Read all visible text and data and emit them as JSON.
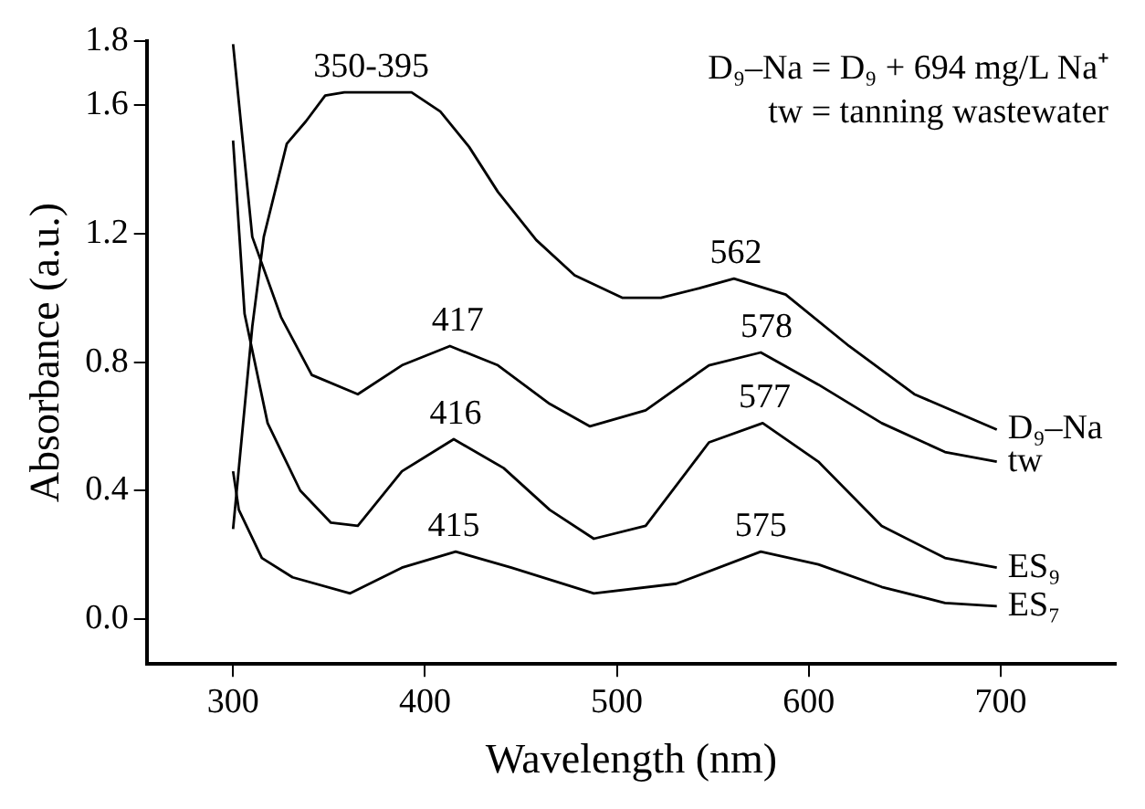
{
  "chart_data": {
    "type": "line",
    "xlabel": "Wavelength (nm)",
    "ylabel": "Absorbance (a.u.)",
    "xlim": [
      255,
      760
    ],
    "xticks": [
      300,
      400,
      500,
      600,
      700
    ],
    "ylim": [
      -0.14,
      1.8
    ],
    "yticks": [
      {
        "value": 0,
        "label": "0.0"
      },
      {
        "value": 0.4,
        "label": "0.4"
      },
      {
        "value": 0.8,
        "label": "0.8"
      },
      {
        "value": 1.2,
        "label": "1.2"
      },
      {
        "value": 1.6,
        "label": "1.6"
      },
      {
        "value": 1.8,
        "label": "1.8"
      }
    ],
    "grid": false,
    "legend": false,
    "marker": "none",
    "line_style": "solid",
    "series": [
      {
        "name": "D₉–Na",
        "color": "#000000",
        "x": [
          300,
          310,
          316,
          328,
          338,
          348,
          358,
          378,
          393,
          408,
          423,
          438,
          458,
          478,
          503,
          523,
          543,
          561,
          588,
          621,
          655,
          698
        ],
        "values": [
          0.28,
          0.91,
          1.19,
          1.48,
          1.55,
          1.63,
          1.64,
          1.64,
          1.64,
          1.58,
          1.47,
          1.33,
          1.18,
          1.07,
          1.0,
          1.0,
          1.03,
          1.06,
          1.01,
          0.85,
          0.7,
          0.59
        ]
      },
      {
        "name": "tw",
        "color": "#000000",
        "x": [
          300,
          310,
          325,
          341,
          365,
          388,
          413,
          438,
          465,
          486,
          515,
          548,
          575,
          605,
          638,
          671,
          698
        ],
        "values": [
          1.79,
          1.19,
          0.94,
          0.76,
          0.7,
          0.79,
          0.85,
          0.79,
          0.67,
          0.6,
          0.65,
          0.79,
          0.83,
          0.73,
          0.61,
          0.52,
          0.49
        ]
      },
      {
        "name": "ES₉",
        "color": "#000000",
        "x": [
          300,
          306,
          318,
          335,
          351,
          365,
          388,
          415,
          441,
          465,
          488,
          515,
          548,
          576,
          605,
          638,
          671,
          698
        ],
        "values": [
          1.49,
          0.95,
          0.61,
          0.4,
          0.3,
          0.29,
          0.46,
          0.56,
          0.47,
          0.34,
          0.25,
          0.29,
          0.55,
          0.61,
          0.49,
          0.29,
          0.19,
          0.16
        ]
      },
      {
        "name": "ES₇",
        "color": "#000000",
        "x": [
          300,
          303,
          315,
          331,
          361,
          388,
          416,
          445,
          488,
          531,
          575,
          605,
          638,
          671,
          698
        ],
        "values": [
          0.46,
          0.34,
          0.19,
          0.13,
          0.08,
          0.16,
          0.21,
          0.16,
          0.08,
          0.11,
          0.21,
          0.17,
          0.1,
          0.05,
          0.04
        ]
      }
    ],
    "annotations": [
      "D₉–Na = D₉ + 694 mg/L Na⁺",
      "tw = tanning wastewater",
      {
        "text": "350-395",
        "x": 372,
        "y": 1.64
      },
      {
        "text": "562",
        "x": 562,
        "y": 1.06
      },
      {
        "text": "417",
        "x": 417,
        "y": 0.85
      },
      {
        "text": "578",
        "x": 578,
        "y": 0.83
      },
      {
        "text": "416",
        "x": 416,
        "y": 0.56
      },
      {
        "text": "577",
        "x": 577,
        "y": 0.61
      },
      {
        "text": "415",
        "x": 415,
        "y": 0.21
      },
      {
        "text": "575",
        "x": 575,
        "y": 0.21
      }
    ]
  }
}
